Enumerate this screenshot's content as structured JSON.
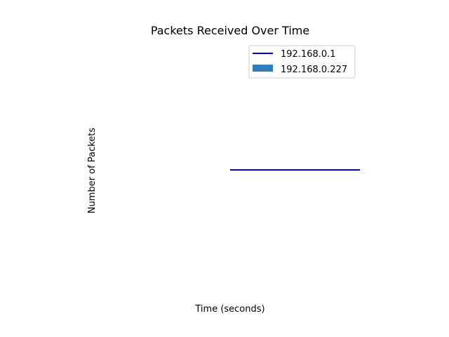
{
  "chart_data": {
    "type": "line",
    "title": "Packets Received Over Time",
    "xlabel": "Time (seconds)",
    "ylabel": "Number of Packets",
    "xlim": [
      -1,
      1
    ],
    "ylim": [
      -1,
      1
    ],
    "axes_visible": false,
    "grid": false,
    "legend_position": "top-right",
    "series": [
      {
        "name": "192.168.0.1",
        "type": "line",
        "color": "#0000bf",
        "x": [
          0,
          1
        ],
        "y": [
          0,
          0
        ]
      },
      {
        "name": "192.168.0.227",
        "type": "bar",
        "color": "#2e7fbf",
        "x": [],
        "y": []
      }
    ]
  }
}
